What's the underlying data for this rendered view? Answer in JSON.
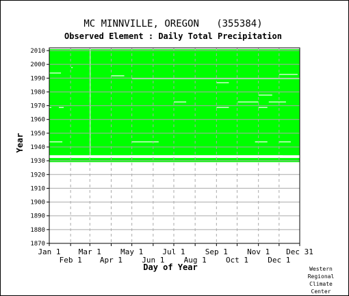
{
  "chart_data": {
    "type": "heatmap",
    "title": "MC MINNVILLE, OREGON   (355384)",
    "subtitle": "Observed Element : Daily Total Precipitation",
    "xlabel": "Day of Year",
    "ylabel": "Year",
    "xlim": [
      1,
      365
    ],
    "ylim": [
      1870,
      2012
    ],
    "grid": true,
    "y_ticks": [
      1870,
      1880,
      1890,
      1900,
      1910,
      1920,
      1930,
      1940,
      1950,
      1960,
      1970,
      1980,
      1990,
      2000,
      2010
    ],
    "x_ticks_top_row": [
      {
        "label": "Jan 1",
        "day": 1
      },
      {
        "label": "Mar 1",
        "day": 60
      },
      {
        "label": "May 1",
        "day": 121
      },
      {
        "label": "Jul 1",
        "day": 182
      },
      {
        "label": "Sep 1",
        "day": 244
      },
      {
        "label": "Nov 1",
        "day": 305
      },
      {
        "label": "Dec 31",
        "day": 365
      }
    ],
    "x_ticks_bottom_row": [
      {
        "label": "Feb 1",
        "day": 32
      },
      {
        "label": "Apr 1",
        "day": 91
      },
      {
        "label": "Jun 1",
        "day": 152
      },
      {
        "label": "Aug 1",
        "day": 213
      },
      {
        "label": "Oct 1",
        "day": 274
      },
      {
        "label": "Dec 1",
        "day": 335
      }
    ],
    "colors": {
      "observed": "#00ff00",
      "missing": "#ffffff",
      "grid": "#aaaaaa",
      "background": "#ffffff"
    },
    "observed_records": [
      {
        "from_year": 1929,
        "from_day": 1,
        "to_year": 1931,
        "to_day": 365
      },
      {
        "from_year": 1934,
        "from_day": 1,
        "to_year": 2010,
        "to_day": 365
      }
    ],
    "missing_gaps": [
      {
        "year": 1933,
        "day_start": 118,
        "day_end": 340
      },
      {
        "year": 1932.5,
        "day_start": 118,
        "day_end": 365
      },
      {
        "year": 1943,
        "day_start": 1,
        "day_end": 20
      },
      {
        "year": 1943,
        "day_start": 121,
        "day_end": 160
      },
      {
        "year": 1943,
        "day_start": 300,
        "day_end": 318
      },
      {
        "year": 1943,
        "day_start": 335,
        "day_end": 352
      },
      {
        "year": 1968,
        "day_start": 1,
        "day_end": 4
      },
      {
        "year": 1968,
        "day_start": 15,
        "day_end": 22
      },
      {
        "year": 1968,
        "day_start": 244,
        "day_end": 262
      },
      {
        "year": 1968,
        "day_start": 305,
        "day_end": 318
      },
      {
        "year": 1972,
        "day_start": 182,
        "day_end": 200
      },
      {
        "year": 1972,
        "day_start": 275,
        "day_end": 305
      },
      {
        "year": 1972,
        "day_start": 320,
        "day_end": 345
      },
      {
        "year": 1977,
        "day_start": 305,
        "day_end": 325
      },
      {
        "year": 1986,
        "day_start": 244,
        "day_end": 262
      },
      {
        "year": 1989,
        "day_start": 121,
        "day_end": 365
      },
      {
        "year": 1991,
        "day_start": 91,
        "day_end": 110
      },
      {
        "year": 1992,
        "day_start": 335,
        "day_end": 362
      },
      {
        "year": 1993,
        "day_start": 1,
        "day_end": 18
      },
      {
        "year": 1997,
        "day_start": 33,
        "day_end": 35
      }
    ],
    "missing_vertical_strips": [
      {
        "day": 60,
        "year_start": 1934,
        "year_end": 2010
      }
    ],
    "note": "Green = day with observed data; white = missing."
  },
  "credit": [
    "Western",
    "Regional",
    "Climate",
    "Center"
  ]
}
